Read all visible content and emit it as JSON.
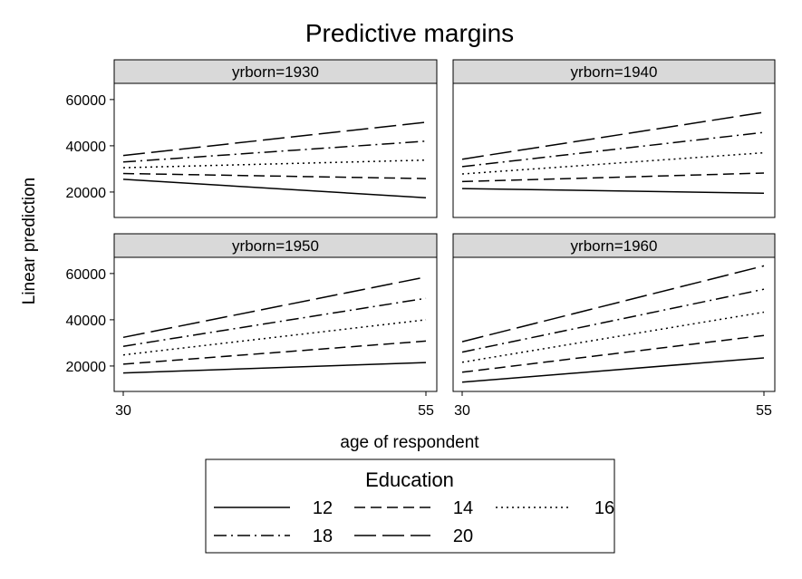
{
  "chart_data": {
    "type": "line",
    "title": "Predictive margins",
    "xlabel": "age of respondent",
    "ylabel": "Linear prediction",
    "x": [
      30,
      55
    ],
    "xlim": [
      30,
      55
    ],
    "ylim": [
      9000,
      67000
    ],
    "xticks": [
      30,
      55
    ],
    "yticks": [
      20000,
      40000,
      60000
    ],
    "legend": {
      "title": "Education",
      "position": "bottom",
      "entries": [
        "12",
        "14",
        "16",
        "18",
        "20"
      ]
    },
    "panels": [
      {
        "label": "yrborn=1930",
        "series": [
          {
            "name": "12",
            "values": [
              25500,
              17500
            ]
          },
          {
            "name": "14",
            "values": [
              28000,
              25800
            ]
          },
          {
            "name": "16",
            "values": [
              30500,
              33800
            ]
          },
          {
            "name": "18",
            "values": [
              33000,
              42000
            ]
          },
          {
            "name": "20",
            "values": [
              35800,
              50200
            ]
          }
        ]
      },
      {
        "label": "yrborn=1940",
        "series": [
          {
            "name": "12",
            "values": [
              21500,
              19500
            ]
          },
          {
            "name": "14",
            "values": [
              24500,
              28200
            ]
          },
          {
            "name": "16",
            "values": [
              27800,
              37000
            ]
          },
          {
            "name": "18",
            "values": [
              31000,
              45800
            ]
          },
          {
            "name": "20",
            "values": [
              34200,
              54500
            ]
          }
        ]
      },
      {
        "label": "yrborn=1950",
        "series": [
          {
            "name": "12",
            "values": [
              17000,
              21500
            ]
          },
          {
            "name": "14",
            "values": [
              20800,
              30800
            ]
          },
          {
            "name": "16",
            "values": [
              24800,
              40000
            ]
          },
          {
            "name": "18",
            "values": [
              28500,
              49300
            ]
          },
          {
            "name": "20",
            "values": [
              32400,
              58500
            ]
          }
        ]
      },
      {
        "label": "yrborn=1960",
        "series": [
          {
            "name": "12",
            "values": [
              13000,
              23500
            ]
          },
          {
            "name": "14",
            "values": [
              17300,
              33200
            ]
          },
          {
            "name": "16",
            "values": [
              21600,
              43300
            ]
          },
          {
            "name": "18",
            "values": [
              26000,
              53200
            ]
          },
          {
            "name": "20",
            "values": [
              30500,
              63300
            ]
          }
        ]
      }
    ]
  }
}
